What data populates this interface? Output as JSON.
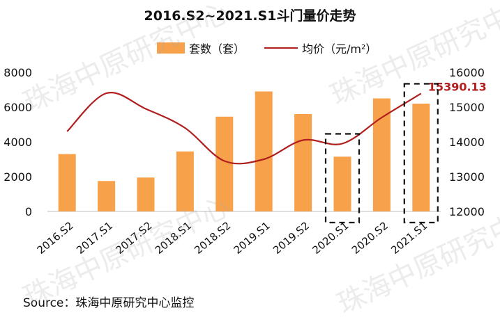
{
  "title": "2016.S2~2021.S1斗门量价走势",
  "legend": {
    "bar_label": "套数（套）",
    "line_label": "均价（元/m²）"
  },
  "source": "Source：珠海中原研究中心监控",
  "watermark": "珠海中原研究中心",
  "colors": {
    "bar": "#F7A24B",
    "line": "#B01E1E",
    "axis": "#bfbfbf",
    "annotation": "#B01E1E"
  },
  "chart_data": {
    "type": "bar",
    "categories": [
      "2016.S2",
      "2017.S1",
      "2017.S2",
      "2018.S1",
      "2018.S2",
      "2019.S1",
      "2019.S2",
      "2020.S1",
      "2020.S2",
      "2021.S1"
    ],
    "series": [
      {
        "name": "套数（套）",
        "type": "bar",
        "axis": "left",
        "values": [
          3300,
          1750,
          1950,
          3450,
          5450,
          6900,
          5600,
          3150,
          6500,
          6200
        ]
      },
      {
        "name": "均价（元/m²）",
        "type": "line",
        "axis": "right",
        "values": [
          14300,
          15400,
          14950,
          14400,
          13450,
          13500,
          14050,
          13950,
          14700,
          15390.13
        ]
      }
    ],
    "y_left": {
      "min": 0,
      "max": 8000,
      "ticks": [
        0,
        2000,
        4000,
        6000,
        8000
      ]
    },
    "y_right": {
      "min": 12000,
      "max": 16000,
      "ticks": [
        12000,
        13000,
        14000,
        15000,
        16000
      ]
    },
    "annotations": [
      {
        "label": "15390.13",
        "category": "2021.S1"
      }
    ],
    "highlight_boxes": [
      "2020.S1",
      "2021.S1"
    ],
    "grid": false,
    "legend_position": "top"
  }
}
